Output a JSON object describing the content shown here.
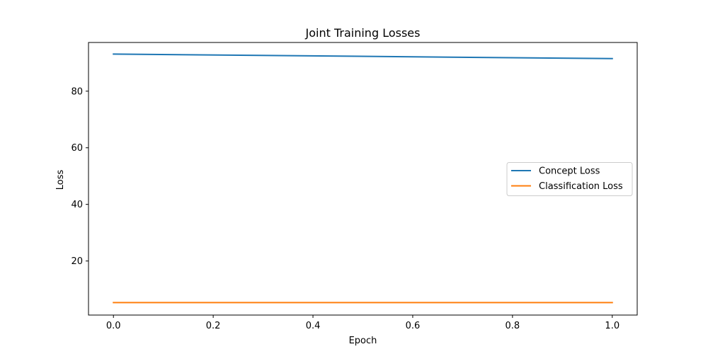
{
  "chart_data": {
    "type": "line",
    "title": "Joint Training Losses",
    "xlabel": "Epoch",
    "ylabel": "Loss",
    "xlim": [
      -0.05,
      1.05
    ],
    "ylim": [
      0.9,
      97.2
    ],
    "xticks": [
      0.0,
      0.2,
      0.4,
      0.6,
      0.8,
      1.0
    ],
    "xtick_labels": [
      "0.0",
      "0.2",
      "0.4",
      "0.6",
      "0.8",
      "1.0"
    ],
    "yticks": [
      20,
      40,
      60,
      80
    ],
    "ytick_labels": [
      "20",
      "40",
      "60",
      "80"
    ],
    "grid": false,
    "legend_position": "center-right",
    "series": [
      {
        "name": "Concept Loss",
        "color": "#1f77b4",
        "x": [
          0,
          1
        ],
        "values": [
          93.1,
          91.5
        ]
      },
      {
        "name": "Classification Loss",
        "color": "#ff7f0e",
        "x": [
          0,
          1
        ],
        "values": [
          5.3,
          5.3
        ]
      }
    ]
  }
}
